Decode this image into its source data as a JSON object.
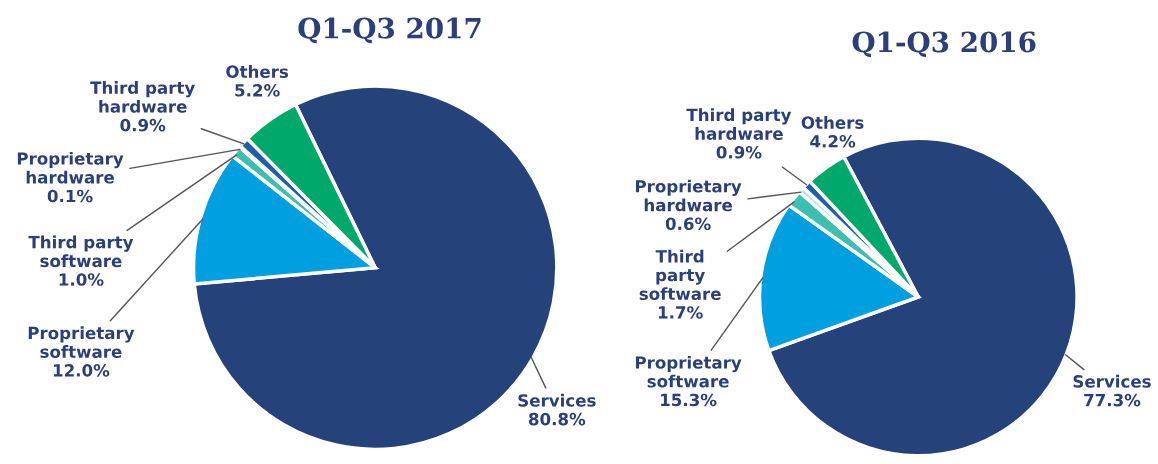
{
  "chart_data": [
    {
      "type": "pie",
      "title": "Q1-Q3 2017",
      "categories": [
        "Services",
        "Proprietary\nsoftware",
        "Third party\nsoftware",
        "Proprietary\nhardware",
        "Third party\nhardware",
        "Others"
      ],
      "values": [
        80.8,
        12.0,
        1.0,
        0.1,
        0.9,
        5.2
      ],
      "value_labels": [
        "80.8%",
        "12.0%",
        "1.0%",
        "0.1%",
        "0.9%",
        "5.2%"
      ],
      "colors": [
        "#26427b",
        "#009fe0",
        "#3cbfae",
        "#b7e4ef",
        "#1f5fa8",
        "#00a86b"
      ]
    },
    {
      "type": "pie",
      "title": "Q1-Q3 2016",
      "categories": [
        "Services",
        "Proprietary\nsoftware",
        "Third\nparty\nsoftware",
        "Proprietary\nhardware",
        "Third party\nhardware",
        "Others"
      ],
      "values": [
        77.3,
        15.3,
        1.7,
        0.6,
        0.9,
        4.2
      ],
      "value_labels": [
        "77.3%",
        "15.3%",
        "1.7%",
        "0.6%",
        "0.9%",
        "4.2%"
      ],
      "colors": [
        "#26427b",
        "#009fe0",
        "#3cbfae",
        "#b7e4ef",
        "#1f5fa8",
        "#00a86b"
      ]
    }
  ]
}
